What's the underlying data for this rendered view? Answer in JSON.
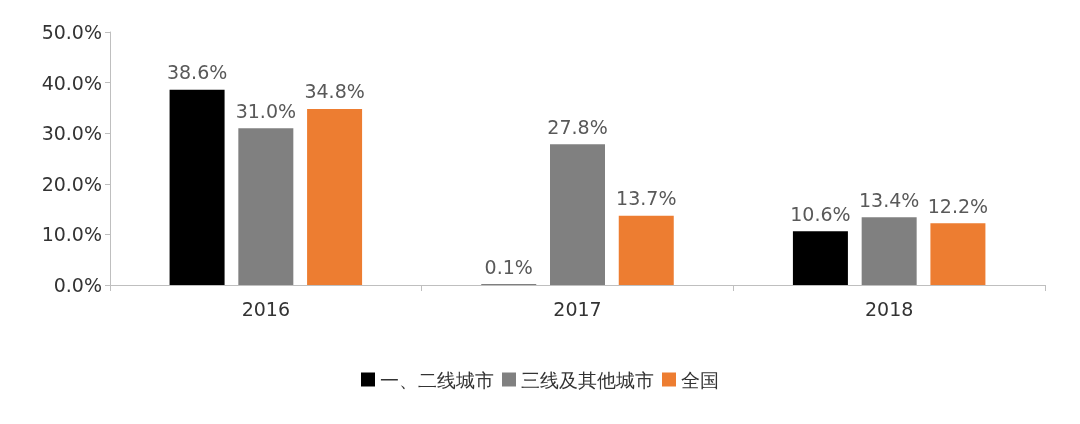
{
  "chart_data": {
    "type": "bar",
    "categories": [
      "2016",
      "2017",
      "2018"
    ],
    "series": [
      {
        "name": "一、二线城市",
        "color": "#000000",
        "values": [
          38.6,
          0.1,
          10.6
        ],
        "value_labels": [
          "38.6%",
          "0.1%",
          "10.6%"
        ]
      },
      {
        "name": "三线及其他城市",
        "color": "#808080",
        "values": [
          31.0,
          27.8,
          13.4
        ],
        "value_labels": [
          "31.0%",
          "27.8%",
          "13.4%"
        ]
      },
      {
        "name": "全国",
        "color": "#ed7d31",
        "values": [
          34.8,
          13.7,
          12.2
        ],
        "value_labels": [
          "34.8%",
          "13.7%",
          "12.2%"
        ]
      }
    ],
    "ylim": [
      0,
      50
    ],
    "yticks": [
      {
        "value": 0,
        "label": "0.0%"
      },
      {
        "value": 10,
        "label": "10.0%"
      },
      {
        "value": 20,
        "label": "20.0%"
      },
      {
        "value": 30,
        "label": "30.0%"
      },
      {
        "value": 40,
        "label": "40.0%"
      },
      {
        "value": 50,
        "label": "50.0%"
      }
    ],
    "grid": false,
    "legend": "bottom"
  }
}
